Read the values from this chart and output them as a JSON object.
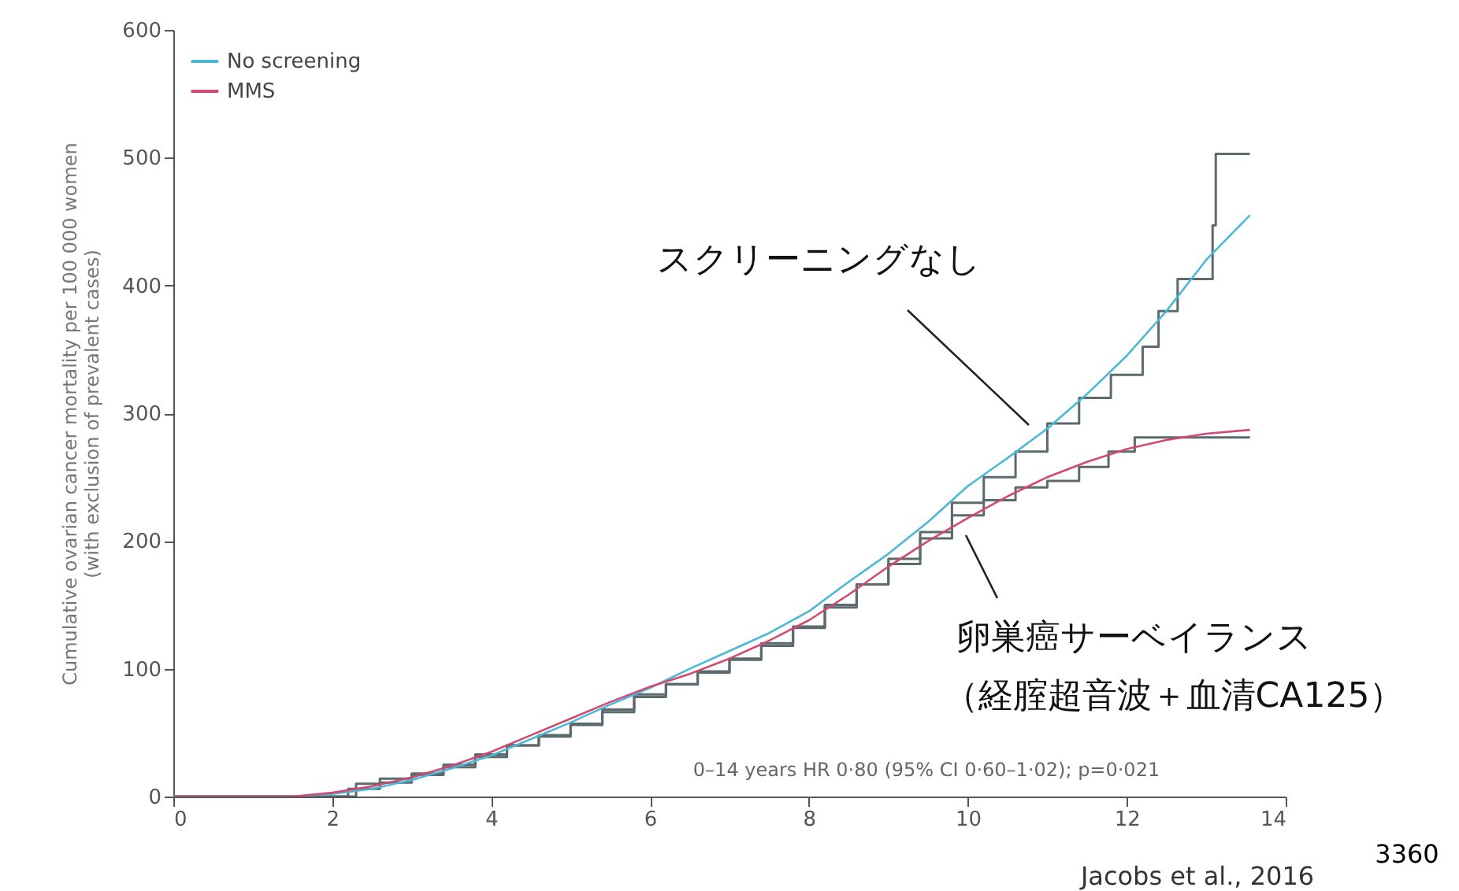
{
  "chart_data": {
    "type": "line",
    "ylabel": "Cumulative ovarian cancer mortality per 100 000 women\n(with exclusion of prevalent cases)",
    "xlim": [
      0,
      14
    ],
    "xticks": [
      0,
      2,
      4,
      6,
      8,
      10,
      12,
      14
    ],
    "ylim": [
      0,
      600
    ],
    "yticks": [
      0,
      100,
      200,
      300,
      400,
      500,
      600
    ],
    "grid": false,
    "legend": "top left",
    "marker": "none",
    "line_style": "solid",
    "series": [
      {
        "type": "step",
        "color": "#5a6a6e",
        "x": [
          0,
          2.3,
          2.6,
          3.0,
          3.4,
          3.8,
          4.2,
          4.6,
          5.0,
          5.4,
          5.8,
          6.2,
          6.6,
          7.0,
          7.4,
          7.8,
          8.2,
          8.6,
          9.0,
          9.4,
          9.8,
          10.2,
          10.6,
          11.0,
          11.4,
          11.8,
          12.2,
          12.4,
          12.64,
          13.08,
          13.12,
          13.55
        ],
        "values": [
          0,
          10,
          14,
          18,
          25,
          33,
          40,
          48,
          56,
          66,
          78,
          88,
          98,
          108,
          120,
          133,
          150,
          166,
          186,
          207,
          230,
          250,
          270,
          292,
          312,
          330,
          352,
          380,
          405,
          447,
          503,
          503
        ]
      },
      {
        "type": "step",
        "color": "#5a6a6e",
        "x": [
          0,
          2.2,
          2.6,
          3.0,
          3.4,
          3.8,
          4.2,
          4.6,
          5.0,
          5.4,
          5.8,
          6.2,
          6.6,
          7.0,
          7.4,
          7.8,
          8.2,
          8.6,
          9.0,
          9.4,
          9.8,
          10.2,
          10.6,
          11.0,
          11.4,
          11.77,
          12.1,
          13.55
        ],
        "values": [
          0,
          6,
          11,
          17,
          23,
          31,
          40,
          47,
          57,
          68,
          80,
          88,
          97,
          107,
          118,
          132,
          148,
          166,
          182,
          202,
          220,
          232,
          242,
          247,
          258,
          270,
          281,
          281
        ]
      },
      {
        "name": "No screening",
        "color": "#4bb8d6",
        "x": [
          0,
          1,
          1.5,
          2,
          2.5,
          3,
          3.5,
          4,
          4.5,
          5,
          5.5,
          6,
          6.5,
          7,
          7.5,
          8,
          8.5,
          9,
          9.5,
          10,
          10.5,
          11,
          11.5,
          12,
          12.5,
          13,
          13.55
        ],
        "values": [
          0,
          0,
          0,
          2,
          6,
          13,
          22,
          32,
          45,
          58,
          72,
          85,
          100,
          114,
          128,
          145,
          168,
          190,
          215,
          243,
          265,
          288,
          315,
          345,
          380,
          420,
          455
        ]
      },
      {
        "name": "MMS",
        "color": "#d04a72",
        "x": [
          0,
          1,
          1.5,
          2,
          2.5,
          3,
          3.5,
          4,
          4.5,
          5,
          5.5,
          6,
          6.5,
          7,
          7.5,
          8,
          8.5,
          9,
          9.5,
          10,
          10.5,
          11,
          11.5,
          12,
          12.5,
          13,
          13.55
        ],
        "values": [
          0,
          0,
          0,
          3,
          8,
          15,
          24,
          35,
          48,
          61,
          74,
          86,
          96,
          108,
          122,
          138,
          158,
          180,
          200,
          218,
          235,
          250,
          262,
          272,
          279,
          284,
          287
        ]
      }
    ],
    "annotations": [
      "スクリーニングなし",
      "卵巣癌サーベイランス",
      "（経腟超音波＋血清CA125）",
      "0–14 years HR 0·80 (95% CI 0·60–1·02); p=0·021",
      "3360",
      "Jacobs et al., 2016"
    ]
  }
}
